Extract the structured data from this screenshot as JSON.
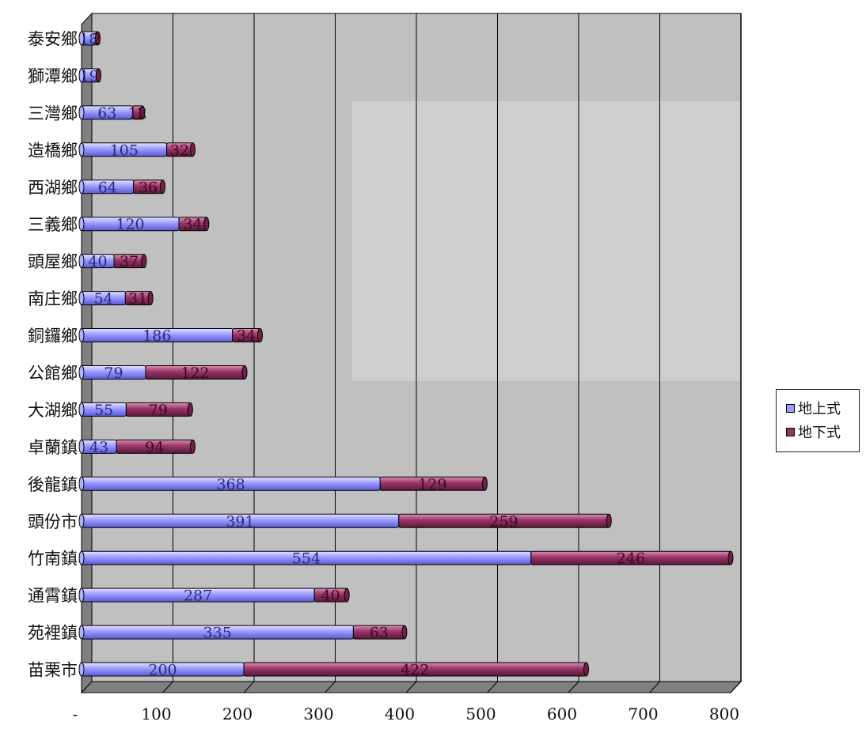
{
  "chart_data": {
    "type": "bar",
    "orientation": "horizontal",
    "stacked": true,
    "categories": [
      "苗栗市",
      "苑裡鎮",
      "通霄鎮",
      "竹南鎮",
      "頭份市",
      "後龍鎮",
      "卓蘭鎮",
      "大湖鄉",
      "公館鄉",
      "銅鑼鄉",
      "南庄鄉",
      "頭屋鄉",
      "三義鄉",
      "西湖鄉",
      "造橋鄉",
      "三灣鄉",
      "獅潭鄉",
      "泰安鄉"
    ],
    "series": [
      {
        "name": "地上式",
        "color": "#9999ff",
        "values": [
          200,
          335,
          287,
          554,
          391,
          368,
          43,
          55,
          79,
          186,
          54,
          40,
          120,
          64,
          105,
          63,
          19,
          18
        ]
      },
      {
        "name": "地下式",
        "color": "#993366",
        "values": [
          422,
          63,
          40,
          246,
          259,
          129,
          94,
          79,
          122,
          34,
          31,
          37,
          34,
          36,
          32,
          12,
          2,
          2
        ]
      }
    ],
    "data_labels": {
      "地上式": [
        "200",
        "335",
        "287",
        "554",
        "391",
        "368",
        "43",
        "55",
        "79",
        "186",
        "54",
        "40",
        "120",
        "64",
        "105",
        "63",
        "19",
        "18"
      ],
      "地下式": [
        "422",
        "63",
        "40",
        "246",
        "259",
        "129",
        "94",
        "79",
        "122",
        "34",
        "31",
        "37",
        "34",
        "36",
        "32",
        "12",
        "",
        "2"
      ]
    },
    "xticks": [
      "-",
      "100",
      "200",
      "300",
      "400",
      "500",
      "600",
      "700",
      "800"
    ],
    "xlim": [
      0,
      800
    ],
    "grid": "vertical",
    "legend_position": "right",
    "background_color": "#c0c0c0",
    "floor_color": "#808080"
  },
  "legend": {
    "items": [
      {
        "label": "地上式",
        "color": "#9999ff"
      },
      {
        "label": "地下式",
        "color": "#993366"
      }
    ]
  }
}
